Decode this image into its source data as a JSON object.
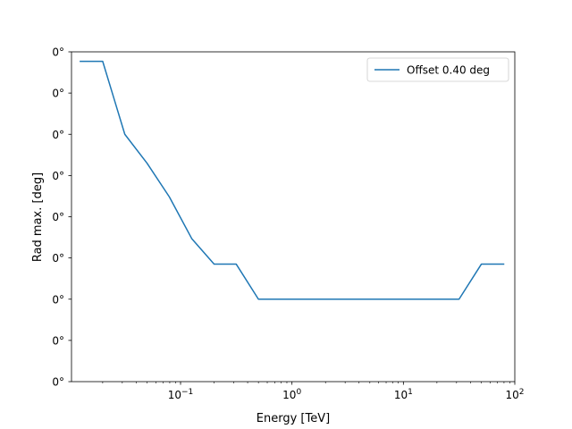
{
  "chart_data": {
    "type": "line",
    "xlabel": "Energy [TeV]",
    "ylabel": "Rad max. [deg]",
    "x_scale": "log",
    "xlim": [
      0.0105,
      100
    ],
    "ylim": [
      0.0,
      0.8
    ],
    "x_ticks": [
      {
        "value": 0.1,
        "base": "10",
        "exp": "−1"
      },
      {
        "value": 1,
        "base": "10",
        "exp": "0"
      },
      {
        "value": 10,
        "base": "10",
        "exp": "1"
      },
      {
        "value": 100,
        "base": "10",
        "exp": "2"
      }
    ],
    "y_ticks": [
      {
        "value": 0.0,
        "label": "0°"
      },
      {
        "value": 0.1,
        "label": "0°"
      },
      {
        "value": 0.2,
        "label": "0°"
      },
      {
        "value": 0.3,
        "label": "0°"
      },
      {
        "value": 0.4,
        "label": "0°"
      },
      {
        "value": 0.5,
        "label": "0°"
      },
      {
        "value": 0.6,
        "label": "0°"
      },
      {
        "value": 0.7,
        "label": "0°"
      },
      {
        "value": 0.8,
        "label": "0°"
      }
    ],
    "grid": false,
    "legend_position": "upper right",
    "series": [
      {
        "name": "Offset 0.40 deg",
        "color": "#1f77b4",
        "points": [
          [
            0.0126,
            0.777
          ],
          [
            0.02,
            0.777
          ],
          [
            0.0316,
            0.6
          ],
          [
            0.05,
            0.53
          ],
          [
            0.0794,
            0.448
          ],
          [
            0.126,
            0.347
          ],
          [
            0.2,
            0.285
          ],
          [
            0.316,
            0.285
          ],
          [
            0.5,
            0.2
          ],
          [
            31.6,
            0.2
          ],
          [
            50.1,
            0.285
          ],
          [
            79.4,
            0.285
          ]
        ]
      }
    ]
  }
}
